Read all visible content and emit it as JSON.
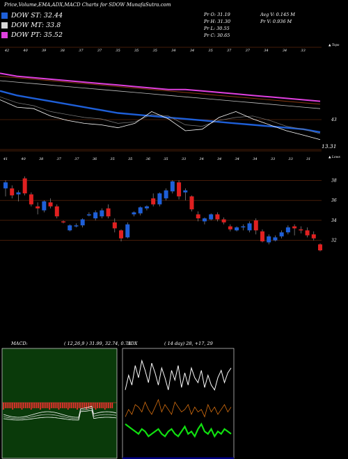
{
  "title": "Price,Volume,EMA,ADX,MACD Charts for SDOW MunafaSutra.com",
  "legend": [
    {
      "label": "DOW ST: 32.44",
      "color": "#1e5fd8"
    },
    {
      "label": "DOW MT: 33.8",
      "color": "#d8d8d8"
    },
    {
      "label": "DOW PT: 35.52",
      "color": "#e040e0"
    }
  ],
  "stats": {
    "pr_o": "Pr  O: 31.19",
    "pr_h": "Pr  H: 31.30",
    "pr_l": "Pr  L: 30.55",
    "pr_c": "Pr  C: 30.65",
    "avg_v": "Avg V: 0.145 M",
    "pr_v": "Pr  V: 0.936  M"
  },
  "colors": {
    "up": "#1e5fd8",
    "down": "#e02020",
    "orange_line": "#b45a1e",
    "pink": "#e040e0",
    "macd_bg": "#0a3a0a",
    "adx_bg": "#000080"
  },
  "chart_data": [
    {
      "type": "line",
      "panel": "ema",
      "x_tick_labels": [
        "42",
        "40",
        "39",
        "38",
        "37",
        "37",
        "35",
        "35",
        "35",
        "34",
        "34",
        "35",
        "37",
        "37",
        "34",
        "34",
        "33"
      ],
      "axis_right_top": "▲ Tops",
      "ylabels": [
        "43"
      ],
      "last_value_label": "13.31",
      "ylim": [
        41,
        47
      ],
      "series": [
        {
          "values": [
            44.6,
            44.3,
            44.1,
            43.9,
            43.7,
            43.5,
            43.3,
            43.1,
            43.0,
            42.9,
            42.8,
            42.7,
            42.6,
            42.5,
            42.4,
            42.3,
            42.2,
            42.1,
            42.0,
            41.8
          ]
        },
        {
          "values": [
            45.6,
            45.5,
            45.4,
            45.3,
            45.2,
            45.1,
            45.0,
            44.9,
            44.8,
            44.7,
            44.6,
            44.5,
            44.4,
            44.3,
            44.2,
            44.1,
            44.0,
            43.9,
            43.8,
            43.7
          ]
        },
        {
          "values": [
            45.3,
            45.2,
            45.1,
            45.0,
            44.9,
            44.8,
            44.7,
            44.6,
            44.5,
            44.4,
            44.3,
            44.2,
            44.1,
            44.0,
            43.9,
            43.8,
            43.7,
            43.6,
            43.5,
            43.4
          ]
        },
        {
          "values": [
            44.2,
            43.8,
            43.6,
            43.2,
            43.0,
            42.8,
            42.7,
            42.4,
            42.5,
            43.0,
            42.9,
            42.3,
            42.2,
            42.6,
            42.8,
            42.9,
            42.6,
            42.2,
            42.0,
            41.7
          ]
        },
        {
          "values": [
            45.8,
            45.6,
            45.5,
            45.4,
            45.3,
            45.2,
            45.1,
            45.0,
            44.9,
            44.8,
            44.7,
            44.7,
            44.6,
            44.5,
            44.4,
            44.3,
            44.2,
            44.1,
            44.0,
            43.9
          ]
        },
        {
          "values": [
            44.0,
            43.5,
            43.4,
            42.9,
            42.6,
            42.4,
            42.3,
            42.1,
            42.4,
            43.2,
            42.7,
            41.9,
            42.0,
            42.8,
            43.2,
            42.7,
            42.3,
            41.9,
            41.6,
            41.3
          ]
        }
      ]
    },
    {
      "type": "candlestick",
      "panel": "price",
      "x_tick_labels": [
        "41",
        "40",
        "38",
        "37",
        "37",
        "36",
        "35",
        "35",
        "36",
        "35",
        "33",
        "34",
        "34",
        "34",
        "34",
        "33",
        "33",
        "31"
      ],
      "axis_right_top": "▲ Lows",
      "ylabels": [
        "38",
        "36",
        "34",
        "32"
      ],
      "ylim": [
        31,
        39
      ],
      "candles": [
        {
          "o": 37.2,
          "h": 38.0,
          "l": 36.4,
          "c": 37.8
        },
        {
          "o": 37.2,
          "h": 37.5,
          "l": 36.2,
          "c": 36.5
        },
        {
          "o": 36.6,
          "h": 37.0,
          "l": 35.9,
          "c": 36.8
        },
        {
          "o": 38.2,
          "h": 38.4,
          "l": 36.5,
          "c": 36.7
        },
        {
          "o": 36.6,
          "h": 36.8,
          "l": 35.4,
          "c": 35.6
        },
        {
          "o": 35.4,
          "h": 35.8,
          "l": 34.6,
          "c": 35.2
        },
        {
          "o": 35.0,
          "h": 36.0,
          "l": 34.8,
          "c": 35.9
        },
        {
          "o": 35.8,
          "h": 36.2,
          "l": 35.2,
          "c": 35.4
        },
        {
          "o": 35.4,
          "h": 35.6,
          "l": 34.2,
          "c": 34.4
        },
        {
          "o": 33.9,
          "h": 34.0,
          "l": 33.7,
          "c": 33.8
        },
        {
          "o": 33.0,
          "h": 33.6,
          "l": 32.9,
          "c": 33.5
        },
        {
          "o": 33.4,
          "h": 33.7,
          "l": 33.3,
          "c": 33.5
        },
        {
          "o": 33.5,
          "h": 34.2,
          "l": 33.3,
          "c": 34.1
        },
        {
          "o": 34.6,
          "h": 34.8,
          "l": 34.4,
          "c": 34.6
        },
        {
          "o": 34.2,
          "h": 35.0,
          "l": 34.0,
          "c": 34.8
        },
        {
          "o": 34.4,
          "h": 35.2,
          "l": 34.2,
          "c": 35.0
        },
        {
          "o": 35.2,
          "h": 35.6,
          "l": 34.2,
          "c": 34.4
        },
        {
          "o": 33.8,
          "h": 34.2,
          "l": 32.8,
          "c": 33.2
        },
        {
          "o": 33.0,
          "h": 33.1,
          "l": 31.9,
          "c": 32.2
        },
        {
          "o": 32.3,
          "h": 33.8,
          "l": 32.2,
          "c": 33.6
        },
        {
          "o": 34.6,
          "h": 34.9,
          "l": 34.4,
          "c": 34.8
        },
        {
          "o": 34.7,
          "h": 35.4,
          "l": 34.5,
          "c": 35.3
        },
        {
          "o": 35.2,
          "h": 35.5,
          "l": 35.0,
          "c": 35.4
        },
        {
          "o": 36.2,
          "h": 36.7,
          "l": 35.4,
          "c": 35.6
        },
        {
          "o": 35.6,
          "h": 36.8,
          "l": 35.4,
          "c": 36.7
        },
        {
          "o": 36.2,
          "h": 37.2,
          "l": 36.0,
          "c": 37.0
        },
        {
          "o": 36.9,
          "h": 38.0,
          "l": 36.7,
          "c": 37.9
        },
        {
          "o": 37.8,
          "h": 38.0,
          "l": 36.1,
          "c": 36.4
        },
        {
          "o": 36.8,
          "h": 37.2,
          "l": 36.0,
          "c": 37.0
        },
        {
          "o": 36.4,
          "h": 36.5,
          "l": 34.9,
          "c": 35.1
        },
        {
          "o": 34.6,
          "h": 34.9,
          "l": 33.9,
          "c": 34.2
        },
        {
          "o": 33.9,
          "h": 34.3,
          "l": 33.6,
          "c": 34.2
        },
        {
          "o": 34.1,
          "h": 34.7,
          "l": 34.0,
          "c": 34.6
        },
        {
          "o": 34.6,
          "h": 34.8,
          "l": 33.9,
          "c": 34.1
        },
        {
          "o": 34.1,
          "h": 34.3,
          "l": 33.6,
          "c": 33.8
        },
        {
          "o": 33.4,
          "h": 33.6,
          "l": 32.9,
          "c": 33.1
        },
        {
          "o": 33.0,
          "h": 33.4,
          "l": 32.9,
          "c": 33.3
        },
        {
          "o": 33.3,
          "h": 33.6,
          "l": 33.0,
          "c": 33.4
        },
        {
          "o": 33.0,
          "h": 33.9,
          "l": 32.8,
          "c": 33.7
        },
        {
          "o": 34.0,
          "h": 34.2,
          "l": 32.6,
          "c": 33.0
        },
        {
          "o": 32.9,
          "h": 33.1,
          "l": 31.8,
          "c": 31.9
        },
        {
          "o": 31.8,
          "h": 32.6,
          "l": 31.6,
          "c": 32.4
        },
        {
          "o": 32.0,
          "h": 32.5,
          "l": 31.9,
          "c": 32.3
        },
        {
          "o": 32.4,
          "h": 33.0,
          "l": 32.2,
          "c": 32.8
        },
        {
          "o": 32.8,
          "h": 33.5,
          "l": 32.6,
          "c": 33.3
        },
        {
          "o": 33.4,
          "h": 33.6,
          "l": 32.5,
          "c": 33.2
        },
        {
          "o": 33.1,
          "h": 33.4,
          "l": 32.7,
          "c": 33.0
        },
        {
          "o": 33.0,
          "h": 33.3,
          "l": 32.3,
          "c": 32.5
        },
        {
          "o": 32.6,
          "h": 32.9,
          "l": 32.0,
          "c": 32.2
        },
        {
          "o": 31.6,
          "h": 31.7,
          "l": 30.9,
          "c": 31.0
        }
      ]
    },
    {
      "type": "bar",
      "panel": "macd",
      "label": "MACD:",
      "params": "( 12,26,9 ) 31.99,  32.74,  0.73",
      "values": [
        0.73
      ]
    },
    {
      "type": "line",
      "panel": "adx",
      "label": "ADX",
      "params": "( 14  day) 28,  +17,  29",
      "series": [
        {
          "color": "#ffffff",
          "values": [
            28,
            34,
            30,
            38,
            33,
            40,
            36,
            31,
            39,
            35,
            30,
            37,
            33,
            28,
            36,
            32,
            38,
            29,
            35,
            30,
            37,
            33,
            31,
            36,
            29,
            34,
            30,
            28,
            33,
            36,
            31,
            35,
            37
          ]
        },
        {
          "color": "#d87010",
          "values": [
            17,
            20,
            18,
            22,
            21,
            19,
            23,
            20,
            18,
            21,
            24,
            19,
            22,
            20,
            18,
            23,
            21,
            19,
            20,
            22,
            18,
            21,
            19,
            20,
            17,
            22,
            19,
            21,
            18,
            20,
            22,
            19,
            21
          ]
        },
        {
          "color": "#10e010",
          "values": [
            14,
            13,
            12,
            11,
            10,
            12,
            11,
            9,
            10,
            11,
            12,
            10,
            9,
            11,
            12,
            10,
            9,
            11,
            13,
            10,
            11,
            9,
            12,
            14,
            11,
            10,
            12,
            9,
            11,
            10,
            12,
            11,
            10
          ]
        }
      ]
    }
  ]
}
